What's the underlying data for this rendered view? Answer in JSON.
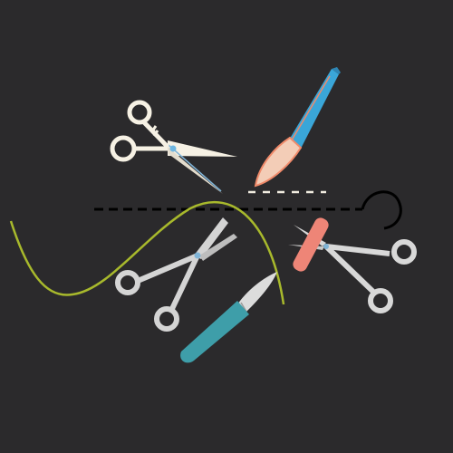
{
  "scene": {
    "background": "#2b2a2c",
    "objects": [
      {
        "name": "white-scissors-icon",
        "color": "#f6f1e4"
      },
      {
        "name": "blue-scalpel-icon",
        "color": "#3aa6d8",
        "accent": "#f08a6a"
      },
      {
        "name": "surgical-scissors-icon",
        "color": "#d4d4d4"
      },
      {
        "name": "hemostat-clamp-icon",
        "color": "#d8d8d8",
        "accent": "#ee8577"
      },
      {
        "name": "teal-scalpel-icon",
        "color": "#3e9ea9"
      },
      {
        "name": "suture-thread-icon",
        "color": "#a8b92c"
      },
      {
        "name": "dashed-incision-line-icon",
        "color": "#000000"
      },
      {
        "name": "white-dashed-cut-icon",
        "color": "#f1ece0"
      }
    ]
  }
}
